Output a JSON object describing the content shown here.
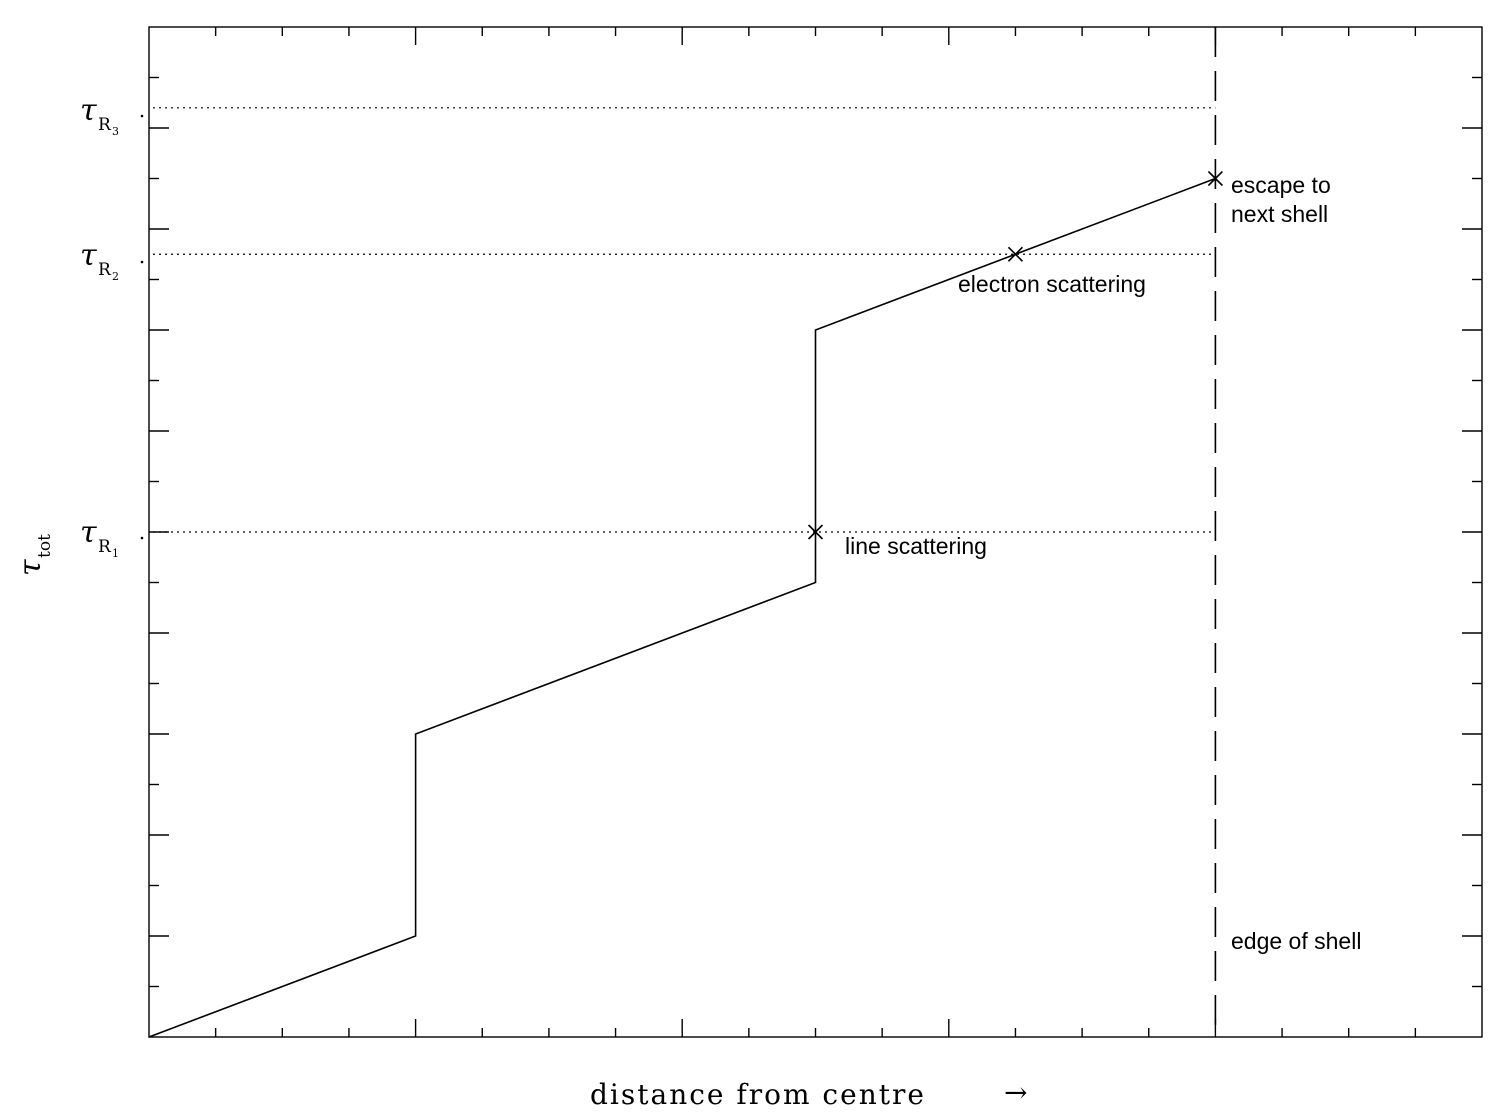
{
  "chart_data": {
    "type": "line",
    "title": "",
    "xlabel": "distance from centre",
    "xlabel_arrow": "→",
    "ylabel": {
      "symbol": "τ",
      "subscript": "tot"
    },
    "xlim": [
      0,
      10
    ],
    "ylim": [
      0,
      10
    ],
    "x_minor_ticks": 20,
    "y_minor_ticks": 20,
    "series": [
      {
        "x": [
          0,
          2,
          2,
          5,
          5,
          6.5,
          8
        ],
        "y": [
          0,
          1,
          3,
          4.5,
          7,
          7.75,
          8.5
        ]
      }
    ],
    "reference_levels": [
      {
        "symbol": "τ",
        "subscript": "R",
        "subsub": "1",
        "y": 5.0
      },
      {
        "symbol": "τ",
        "subscript": "R",
        "subsub": "2",
        "y": 7.75
      },
      {
        "symbol": "τ",
        "subscript": "R",
        "subsub": "3",
        "y": 9.2
      }
    ],
    "markers": [
      {
        "x": 5,
        "y": 5.0
      },
      {
        "x": 6.5,
        "y": 7.75
      },
      {
        "x": 8,
        "y": 8.5
      }
    ],
    "vertical_line": {
      "x": 8
    },
    "annotations": [
      {
        "text": "line scattering"
      },
      {
        "text": "electron scattering"
      },
      {
        "text": "escape to"
      },
      {
        "text": "next shell"
      },
      {
        "text": "edge of shell"
      }
    ]
  }
}
